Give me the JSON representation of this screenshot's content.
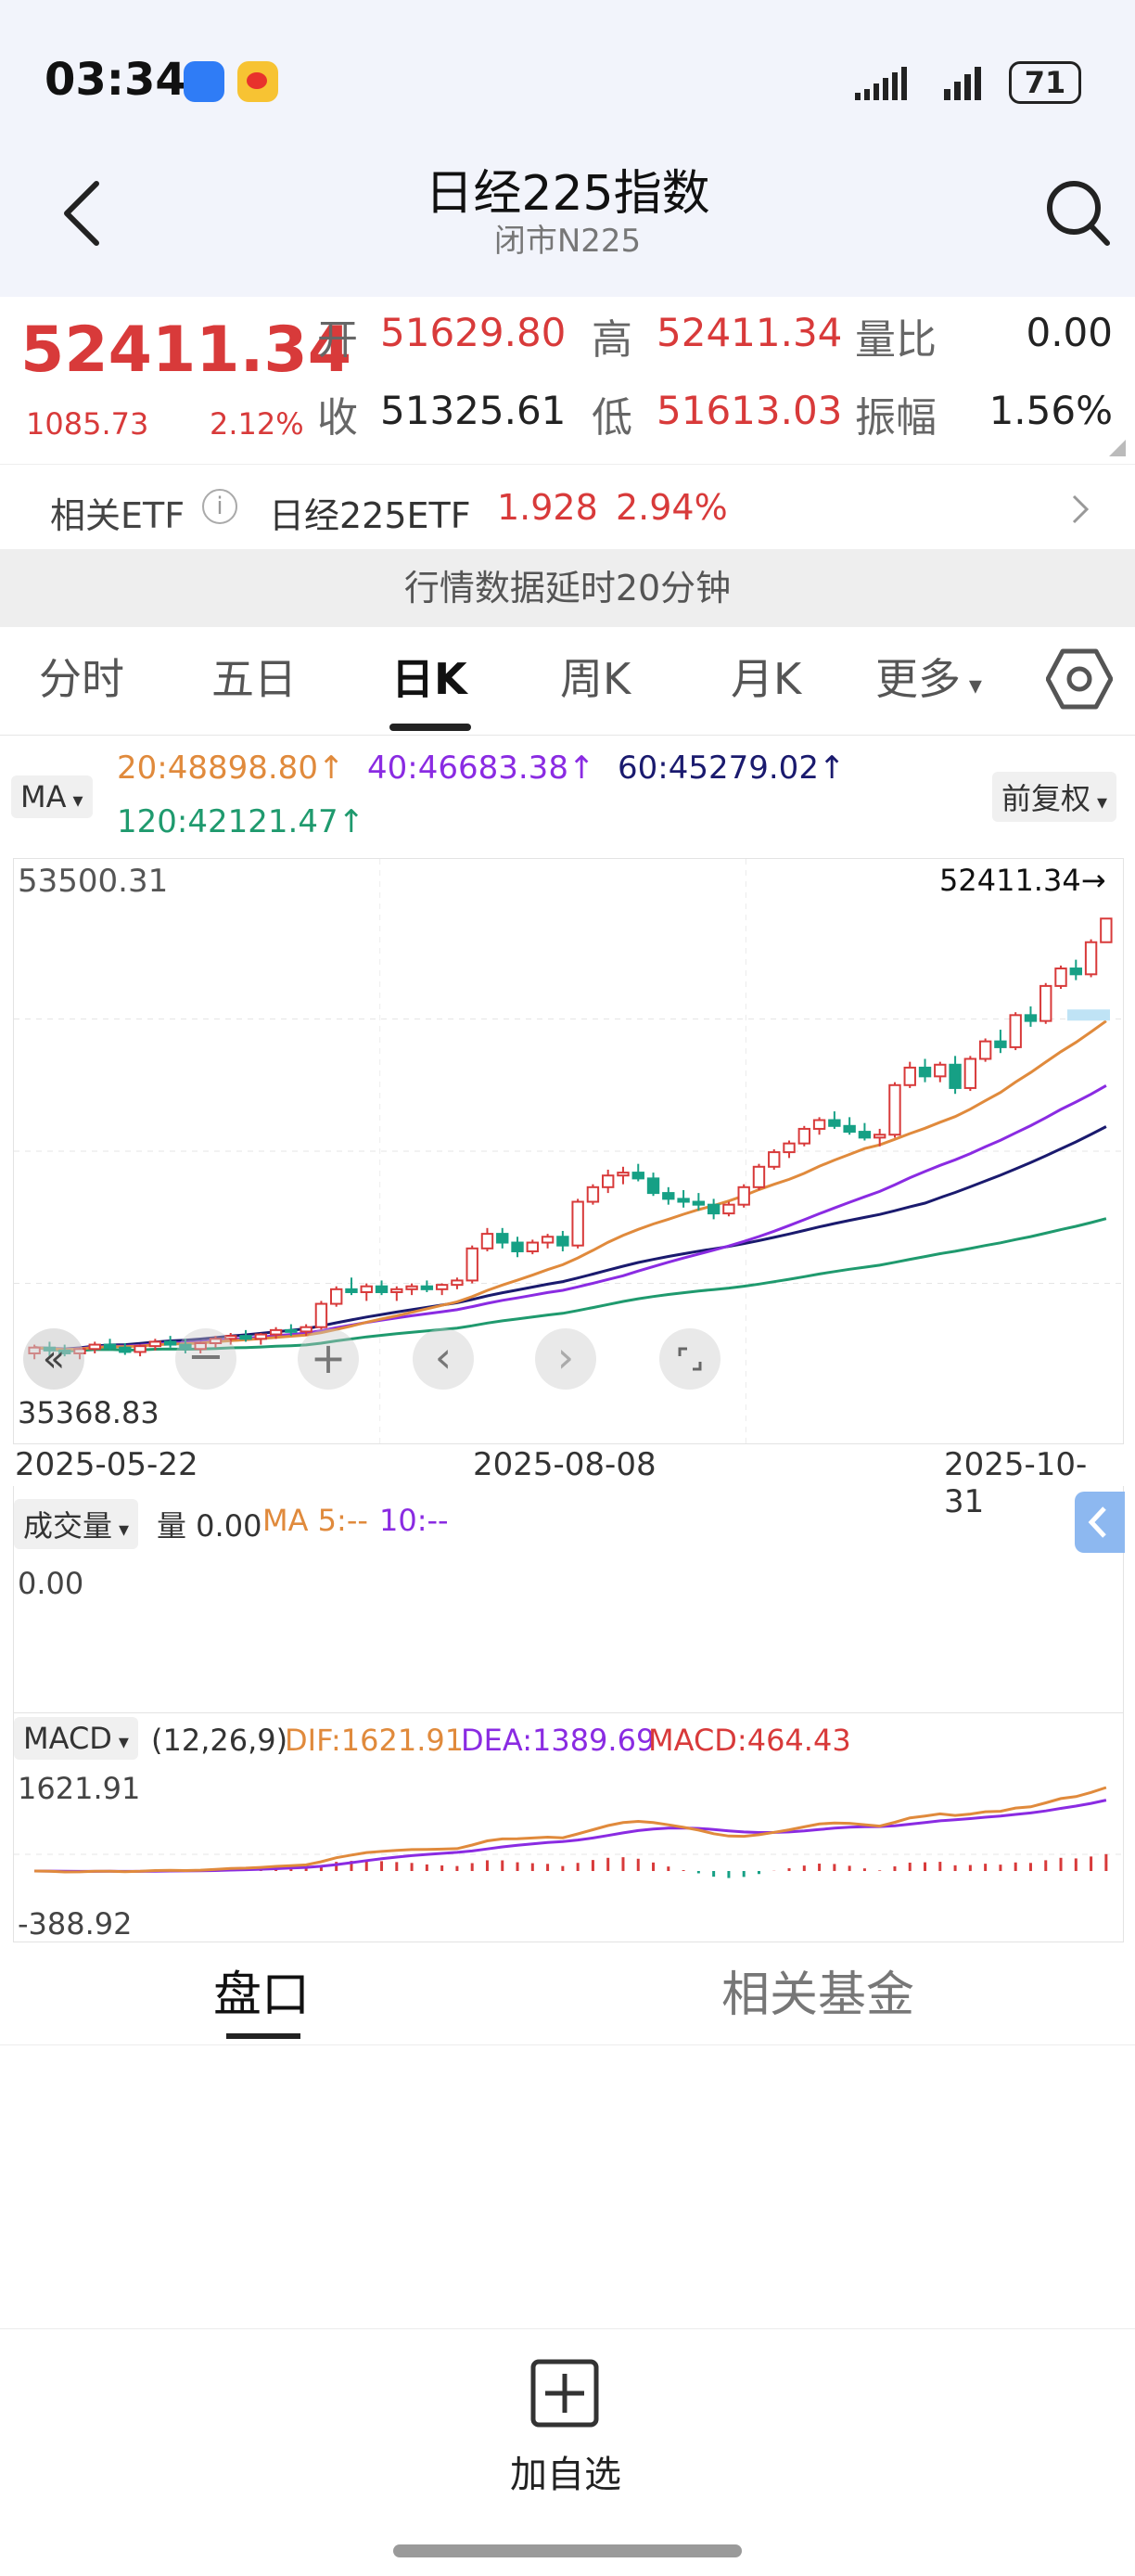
{
  "status_bar": {
    "time": "03:34",
    "battery": "71"
  },
  "header": {
    "title": "日经225指数",
    "subtitle": "闭市N225"
  },
  "quote": {
    "price": "52411.34",
    "change": "1085.73",
    "change_pct": "2.12%",
    "open_label": "开",
    "open": "51629.80",
    "high_label": "高",
    "high": "52411.34",
    "vol_ratio_label": "量比",
    "vol_ratio": "0.00",
    "close_label": "收",
    "close": "51325.61",
    "low_label": "低",
    "low": "51613.03",
    "amplitude_label": "振幅",
    "amplitude": "1.56%"
  },
  "etf": {
    "label": "相关ETF",
    "name": "日经225ETF",
    "price": "1.928",
    "pct": "2.94%"
  },
  "notice": "行情数据延时20分钟",
  "tabs": [
    {
      "label": "分时"
    },
    {
      "label": "五日"
    },
    {
      "label": "日K"
    },
    {
      "label": "周K"
    },
    {
      "label": "月K"
    },
    {
      "label": "更多"
    }
  ],
  "ma": {
    "selector": "MA",
    "ma20": "20:48898.80↑",
    "ma40": "40:46683.38↑",
    "ma60": "60:45279.02↑",
    "ma120": "120:42121.47↑",
    "adjust": "前复权"
  },
  "chart_data": {
    "type": "candlestick",
    "y_max_label": "53500.31",
    "y_min_label": "35368.83",
    "last_label": "52411.34→",
    "x_labels": [
      "2025-05-22",
      "2025-08-08",
      "2025-10-31"
    ],
    "ylim": [
      35368.83,
      53500.31
    ],
    "candles": [
      [
        37500,
        37800,
        37300,
        37700
      ],
      [
        37700,
        37900,
        37400,
        37600
      ],
      [
        37600,
        37800,
        37400,
        37500
      ],
      [
        37500,
        37700,
        37300,
        37650
      ],
      [
        37650,
        37900,
        37500,
        37800
      ],
      [
        37800,
        38000,
        37600,
        37700
      ],
      [
        37700,
        37850,
        37450,
        37550
      ],
      [
        37550,
        37800,
        37400,
        37750
      ],
      [
        37750,
        38000,
        37600,
        37900
      ],
      [
        37900,
        38100,
        37700,
        37800
      ],
      [
        37800,
        38000,
        37500,
        37650
      ],
      [
        37650,
        37900,
        37500,
        37850
      ],
      [
        37850,
        38100,
        37700,
        38000
      ],
      [
        38000,
        38200,
        37800,
        38100
      ],
      [
        38100,
        38300,
        37900,
        38000
      ],
      [
        38000,
        38200,
        37800,
        38150
      ],
      [
        38150,
        38400,
        38000,
        38300
      ],
      [
        38300,
        38500,
        38100,
        38250
      ],
      [
        38250,
        38500,
        38100,
        38400
      ],
      [
        38400,
        39300,
        38300,
        39200
      ],
      [
        39200,
        39800,
        39100,
        39700
      ],
      [
        39700,
        40100,
        39500,
        39600
      ],
      [
        39600,
        39900,
        39300,
        39800
      ],
      [
        39800,
        40000,
        39500,
        39600
      ],
      [
        39600,
        39800,
        39300,
        39700
      ],
      [
        39700,
        39900,
        39500,
        39800
      ],
      [
        39800,
        40000,
        39600,
        39700
      ],
      [
        39700,
        39900,
        39500,
        39850
      ],
      [
        39850,
        40100,
        39700,
        40000
      ],
      [
        40000,
        41200,
        39900,
        41100
      ],
      [
        41100,
        41800,
        41000,
        41600
      ],
      [
        41600,
        41800,
        41100,
        41300
      ],
      [
        41300,
        41500,
        40800,
        41000
      ],
      [
        41000,
        41400,
        40900,
        41300
      ],
      [
        41300,
        41600,
        41100,
        41500
      ],
      [
        41500,
        41700,
        41000,
        41200
      ],
      [
        41200,
        42800,
        41100,
        42700
      ],
      [
        42700,
        43300,
        42600,
        43200
      ],
      [
        43200,
        43800,
        43000,
        43600
      ],
      [
        43600,
        43900,
        43300,
        43700
      ],
      [
        43700,
        44000,
        43400,
        43500
      ],
      [
        43500,
        43700,
        42900,
        43000
      ],
      [
        43000,
        43200,
        42600,
        42800
      ],
      [
        42800,
        43100,
        42500,
        42700
      ],
      [
        42700,
        43000,
        42400,
        42600
      ],
      [
        42600,
        42800,
        42100,
        42300
      ],
      [
        42300,
        42700,
        42200,
        42600
      ],
      [
        42600,
        43300,
        42500,
        43200
      ],
      [
        43200,
        44000,
        43100,
        43900
      ],
      [
        43900,
        44500,
        43800,
        44400
      ],
      [
        44400,
        44800,
        44200,
        44700
      ],
      [
        44700,
        45300,
        44600,
        45200
      ],
      [
        45200,
        45600,
        45000,
        45500
      ],
      [
        45500,
        45800,
        45200,
        45300
      ],
      [
        45300,
        45600,
        45000,
        45100
      ],
      [
        45100,
        45400,
        44800,
        44900
      ],
      [
        44900,
        45200,
        44600,
        45000
      ],
      [
        45000,
        46800,
        44900,
        46700
      ],
      [
        46700,
        47500,
        46600,
        47300
      ],
      [
        47300,
        47600,
        46800,
        47000
      ],
      [
        47000,
        47500,
        46800,
        47400
      ],
      [
        47400,
        47700,
        46400,
        46600
      ],
      [
        46600,
        47700,
        46500,
        47600
      ],
      [
        47600,
        48300,
        47500,
        48200
      ],
      [
        48200,
        48600,
        47800,
        48000
      ],
      [
        48000,
        49200,
        47900,
        49100
      ],
      [
        49100,
        49400,
        48700,
        48900
      ],
      [
        48900,
        50200,
        48800,
        50100
      ],
      [
        50100,
        50800,
        50000,
        50700
      ],
      [
        50700,
        51000,
        50300,
        50500
      ],
      [
        50500,
        51700,
        50400,
        51600
      ],
      [
        51600,
        52411,
        51613,
        52411
      ]
    ],
    "ma20_end": 48898.8,
    "ma40_end": 46683.38,
    "ma60_end": 45279.02,
    "ma120_end": 42121.47
  },
  "volume": {
    "selector": "成交量",
    "value": "量 0.00",
    "ma5": "MA 5:--",
    "ma10": "10:--",
    "axis_label": "0.00"
  },
  "macd": {
    "selector": "MACD",
    "params": "(12,26,9)",
    "dif": "DIF:1621.91",
    "dea": "DEA:1389.69",
    "macd": "MACD:464.43",
    "y_max_label": "1621.91",
    "y_min_label": "-388.92"
  },
  "bottom_tabs": [
    {
      "label": "盘口"
    },
    {
      "label": "相关基金"
    }
  ],
  "add_watch": {
    "label": "加自选"
  },
  "colors": {
    "up": "#d83a3a",
    "down": "#16a085",
    "ma20": "#e08a3c",
    "ma40": "#8a2be2",
    "ma60": "#1a1a6e",
    "ma120": "#1f9a6e"
  }
}
